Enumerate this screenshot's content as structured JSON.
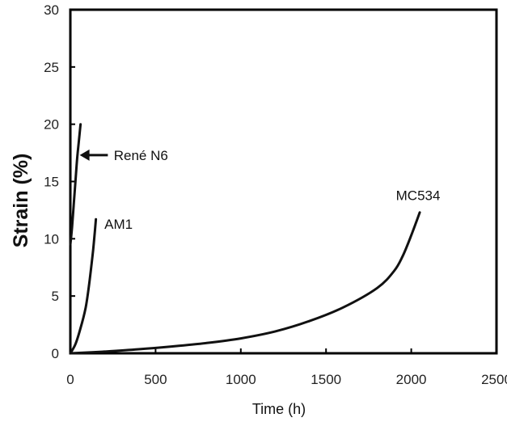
{
  "chart_data": {
    "type": "line",
    "title": "",
    "xlabel": "Time (h)",
    "ylabel": "Strain (%)",
    "xlim": [
      0,
      2500
    ],
    "ylim": [
      0,
      30
    ],
    "xticks": [
      0,
      500,
      1000,
      1500,
      2000,
      2500
    ],
    "yticks": [
      0,
      5,
      10,
      15,
      20,
      25,
      30
    ],
    "grid": false,
    "legend": "none",
    "series": [
      {
        "name": "René N6",
        "x": [
          0,
          10,
          20,
          30,
          40,
          50,
          60
        ],
        "y": [
          9.5,
          11,
          13,
          15,
          17,
          18.5,
          20
        ],
        "label_x": 255,
        "label_y": 17.3
      },
      {
        "name": "AM1",
        "x": [
          0,
          30,
          60,
          90,
          110,
          130,
          140,
          150
        ],
        "y": [
          0,
          0.8,
          2.2,
          4.0,
          6.0,
          8.5,
          10.0,
          11.7
        ],
        "label_x": 200,
        "label_y": 11.3
      },
      {
        "name": "MC534",
        "x": [
          0,
          200,
          400,
          600,
          800,
          1000,
          1200,
          1400,
          1600,
          1800,
          1900,
          1950,
          2000,
          2050
        ],
        "y": [
          0,
          0.15,
          0.35,
          0.6,
          0.9,
          1.3,
          1.9,
          2.8,
          4.0,
          5.7,
          7.2,
          8.5,
          10.3,
          12.3
        ],
        "label_x": 2040,
        "label_y": 13.8
      }
    ],
    "annotations": [
      {
        "type": "arrow",
        "points_to_series": "René N6",
        "x_from": 220,
        "x_to": 55,
        "y": 17.3
      }
    ]
  }
}
